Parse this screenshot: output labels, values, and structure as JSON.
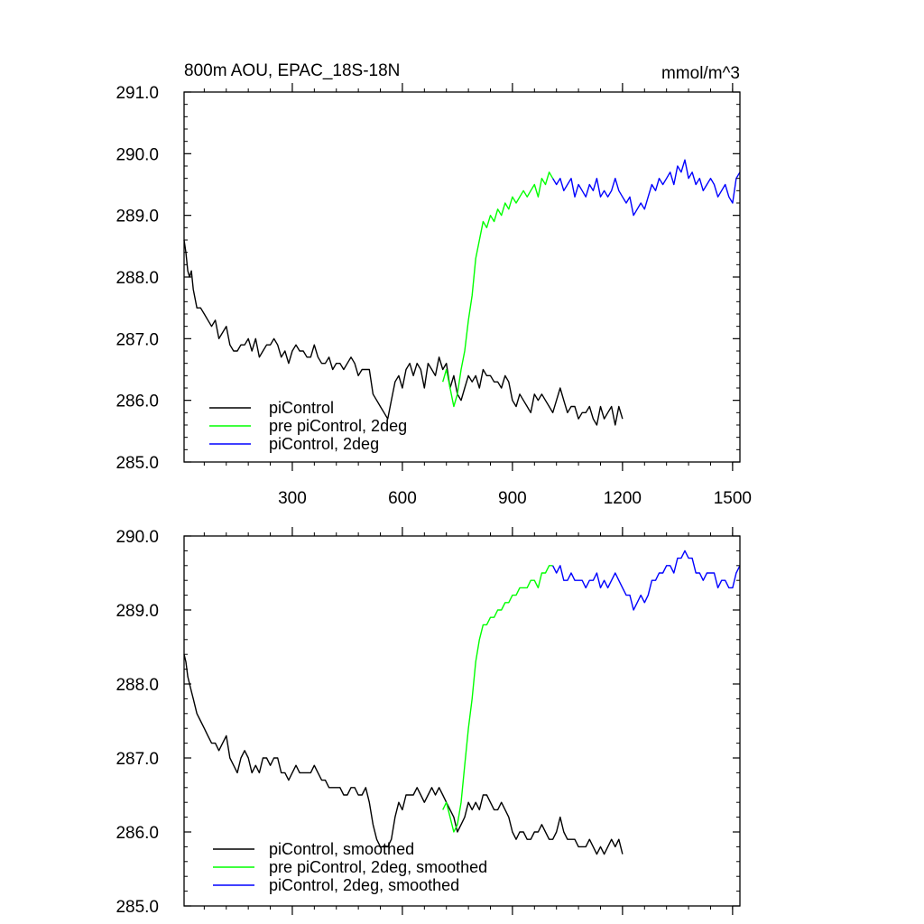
{
  "chart_data": [
    {
      "type": "line",
      "title_left": "800m AOU, EPAC_18S-18N",
      "title_right": "mmol/m^3",
      "xlim": [
        5,
        1520
      ],
      "ylim": [
        285.0,
        291.0
      ],
      "x_ticks": [
        300,
        600,
        900,
        1200,
        1500
      ],
      "y_ticks": [
        285.0,
        286.0,
        287.0,
        288.0,
        289.0,
        290.0,
        291.0
      ],
      "x_tick_labels_shown": true,
      "legend_position": "bottom-left",
      "series": [
        {
          "name": "piControl",
          "color": "#000000",
          "x": [
            5,
            10,
            15,
            20,
            25,
            30,
            40,
            50,
            60,
            70,
            80,
            90,
            100,
            110,
            120,
            130,
            140,
            150,
            160,
            170,
            180,
            190,
            200,
            210,
            220,
            230,
            240,
            250,
            260,
            270,
            280,
            290,
            300,
            310,
            320,
            330,
            340,
            350,
            360,
            370,
            380,
            390,
            400,
            410,
            420,
            430,
            440,
            450,
            460,
            470,
            480,
            490,
            500,
            510,
            520,
            530,
            540,
            550,
            560,
            570,
            580,
            590,
            600,
            610,
            620,
            630,
            640,
            650,
            660,
            670,
            680,
            690,
            700,
            710,
            720,
            730,
            740,
            750,
            760,
            770,
            780,
            790,
            800,
            810,
            820,
            830,
            840,
            850,
            860,
            870,
            880,
            890,
            900,
            910,
            920,
            930,
            940,
            950,
            960,
            970,
            980,
            990,
            1000,
            1010,
            1020,
            1030,
            1040,
            1050,
            1060,
            1070,
            1080,
            1090,
            1100,
            1110,
            1120,
            1130,
            1140,
            1150,
            1160,
            1170,
            1180,
            1190,
            1200
          ],
          "values": [
            288.6,
            288.4,
            288.1,
            288.0,
            288.1,
            287.8,
            287.5,
            287.5,
            287.4,
            287.3,
            287.2,
            287.3,
            287.0,
            287.1,
            287.2,
            286.9,
            286.8,
            286.8,
            286.9,
            286.9,
            287.0,
            286.8,
            287.0,
            286.7,
            286.8,
            286.9,
            286.9,
            287.0,
            286.9,
            286.7,
            286.8,
            286.6,
            286.8,
            286.9,
            286.8,
            286.8,
            286.7,
            286.7,
            286.9,
            286.7,
            286.6,
            286.6,
            286.7,
            286.5,
            286.6,
            286.6,
            286.5,
            286.6,
            286.7,
            286.6,
            286.4,
            286.5,
            286.5,
            286.5,
            286.1,
            286.0,
            285.9,
            285.8,
            285.7,
            286.0,
            286.3,
            286.4,
            286.2,
            286.5,
            286.6,
            286.4,
            286.6,
            286.5,
            286.2,
            286.6,
            286.5,
            286.4,
            286.7,
            286.5,
            286.6,
            286.2,
            286.4,
            286.1,
            286.0,
            286.2,
            286.4,
            286.3,
            286.4,
            286.2,
            286.5,
            286.4,
            286.4,
            286.3,
            286.3,
            286.2,
            286.4,
            286.3,
            286.0,
            285.9,
            286.1,
            286.0,
            285.9,
            285.8,
            286.1,
            286.0,
            286.1,
            286.0,
            285.9,
            285.8,
            286.0,
            286.2,
            286.0,
            285.8,
            285.9,
            285.9,
            285.7,
            285.8,
            285.8,
            285.9,
            285.7,
            285.6,
            285.9,
            285.7,
            285.8,
            285.9,
            285.6,
            285.9,
            285.7
          ]
        },
        {
          "name": "pre piControl, 2deg",
          "color": "#00ff00",
          "x": [
            710,
            720,
            730,
            740,
            750,
            760,
            770,
            780,
            790,
            800,
            810,
            820,
            830,
            840,
            850,
            860,
            870,
            880,
            890,
            900,
            910,
            920,
            930,
            940,
            950,
            960,
            970,
            980,
            990,
            1000,
            1010
          ],
          "values": [
            286.3,
            286.5,
            286.2,
            285.9,
            286.1,
            286.5,
            286.8,
            287.3,
            287.7,
            288.3,
            288.6,
            288.9,
            288.8,
            289.0,
            288.9,
            289.1,
            289.0,
            289.2,
            289.1,
            289.3,
            289.2,
            289.3,
            289.4,
            289.3,
            289.4,
            289.5,
            289.3,
            289.6,
            289.5,
            289.7,
            289.6
          ]
        },
        {
          "name": "piControl, 2deg",
          "color": "#0000ff",
          "x": [
            1010,
            1020,
            1030,
            1040,
            1050,
            1060,
            1070,
            1080,
            1090,
            1100,
            1110,
            1120,
            1130,
            1140,
            1150,
            1160,
            1170,
            1180,
            1190,
            1200,
            1210,
            1220,
            1230,
            1240,
            1250,
            1260,
            1270,
            1280,
            1290,
            1300,
            1310,
            1320,
            1330,
            1340,
            1350,
            1360,
            1370,
            1380,
            1390,
            1400,
            1410,
            1420,
            1430,
            1440,
            1450,
            1460,
            1470,
            1480,
            1490,
            1500,
            1510,
            1520
          ],
          "values": [
            289.6,
            289.5,
            289.6,
            289.4,
            289.5,
            289.6,
            289.3,
            289.5,
            289.4,
            289.3,
            289.5,
            289.4,
            289.6,
            289.3,
            289.4,
            289.3,
            289.4,
            289.6,
            289.4,
            289.3,
            289.2,
            289.3,
            289.0,
            289.1,
            289.2,
            289.1,
            289.3,
            289.5,
            289.4,
            289.6,
            289.5,
            289.6,
            289.7,
            289.5,
            289.8,
            289.7,
            289.9,
            289.6,
            289.7,
            289.5,
            289.6,
            289.4,
            289.5,
            289.6,
            289.5,
            289.3,
            289.4,
            289.5,
            289.3,
            289.2,
            289.6,
            289.7
          ]
        }
      ]
    },
    {
      "type": "line",
      "xlim": [
        5,
        1520
      ],
      "ylim": [
        285.0,
        290.0
      ],
      "x_ticks": [
        300,
        600,
        900,
        1200,
        1500
      ],
      "y_ticks": [
        285.0,
        286.0,
        287.0,
        288.0,
        289.0,
        290.0
      ],
      "x_tick_labels_shown": false,
      "legend_position": "bottom-left",
      "series": [
        {
          "name": "piControl, smoothed",
          "color": "#000000",
          "x": [
            5,
            10,
            15,
            20,
            25,
            30,
            40,
            50,
            60,
            70,
            80,
            90,
            100,
            110,
            120,
            130,
            140,
            150,
            160,
            170,
            180,
            190,
            200,
            210,
            220,
            230,
            240,
            250,
            260,
            270,
            280,
            290,
            300,
            310,
            320,
            330,
            340,
            350,
            360,
            370,
            380,
            390,
            400,
            410,
            420,
            430,
            440,
            450,
            460,
            470,
            480,
            490,
            500,
            510,
            520,
            530,
            540,
            550,
            560,
            570,
            580,
            590,
            600,
            610,
            620,
            630,
            640,
            650,
            660,
            670,
            680,
            690,
            700,
            710,
            720,
            730,
            740,
            750,
            760,
            770,
            780,
            790,
            800,
            810,
            820,
            830,
            840,
            850,
            860,
            870,
            880,
            890,
            900,
            910,
            920,
            930,
            940,
            950,
            960,
            970,
            980,
            990,
            1000,
            1010,
            1020,
            1030,
            1040,
            1050,
            1060,
            1070,
            1080,
            1090,
            1100,
            1110,
            1120,
            1130,
            1140,
            1150,
            1160,
            1170,
            1180,
            1190,
            1200
          ],
          "values": [
            288.4,
            288.3,
            288.1,
            288.0,
            287.9,
            287.8,
            287.6,
            287.5,
            287.4,
            287.3,
            287.2,
            287.2,
            287.1,
            287.2,
            287.3,
            287.0,
            286.9,
            286.8,
            287.0,
            287.1,
            287.0,
            286.8,
            286.9,
            286.8,
            287.0,
            287.0,
            286.9,
            287.0,
            287.0,
            286.8,
            286.8,
            286.7,
            286.8,
            286.9,
            286.8,
            286.8,
            286.8,
            286.8,
            286.9,
            286.8,
            286.7,
            286.7,
            286.6,
            286.6,
            286.6,
            286.6,
            286.5,
            286.5,
            286.6,
            286.6,
            286.5,
            286.5,
            286.6,
            286.4,
            286.1,
            285.9,
            285.8,
            285.8,
            285.8,
            285.9,
            286.2,
            286.4,
            286.3,
            286.5,
            286.5,
            286.5,
            286.6,
            286.5,
            286.4,
            286.5,
            286.6,
            286.5,
            286.6,
            286.5,
            286.4,
            286.3,
            286.2,
            286.0,
            286.1,
            286.2,
            286.4,
            286.3,
            286.4,
            286.3,
            286.5,
            286.5,
            286.4,
            286.3,
            286.3,
            286.4,
            286.3,
            286.2,
            286.0,
            285.9,
            286.0,
            286.0,
            285.9,
            285.9,
            286.0,
            286.0,
            286.1,
            286.0,
            285.9,
            285.9,
            286.0,
            286.2,
            286.0,
            285.9,
            285.9,
            285.9,
            285.8,
            285.8,
            285.8,
            285.9,
            285.8,
            285.7,
            285.8,
            285.7,
            285.8,
            285.9,
            285.8,
            285.9,
            285.7
          ]
        },
        {
          "name": "pre piControl, 2deg, smoothed",
          "color": "#00ff00",
          "x": [
            710,
            720,
            730,
            740,
            750,
            760,
            770,
            780,
            790,
            800,
            810,
            820,
            830,
            840,
            850,
            860,
            870,
            880,
            890,
            900,
            910,
            920,
            930,
            940,
            950,
            960,
            970,
            980,
            990,
            1000,
            1010
          ],
          "values": [
            286.3,
            286.4,
            286.2,
            286.0,
            286.1,
            286.4,
            286.9,
            287.4,
            287.8,
            288.3,
            288.6,
            288.8,
            288.8,
            288.9,
            288.9,
            289.0,
            289.0,
            289.1,
            289.1,
            289.2,
            289.2,
            289.3,
            289.3,
            289.3,
            289.4,
            289.4,
            289.3,
            289.5,
            289.5,
            289.6,
            289.6
          ]
        },
        {
          "name": "piControl, 2deg, smoothed",
          "color": "#0000ff",
          "x": [
            1010,
            1020,
            1030,
            1040,
            1050,
            1060,
            1070,
            1080,
            1090,
            1100,
            1110,
            1120,
            1130,
            1140,
            1150,
            1160,
            1170,
            1180,
            1190,
            1200,
            1210,
            1220,
            1230,
            1240,
            1250,
            1260,
            1270,
            1280,
            1290,
            1300,
            1310,
            1320,
            1330,
            1340,
            1350,
            1360,
            1370,
            1380,
            1390,
            1400,
            1410,
            1420,
            1430,
            1440,
            1450,
            1460,
            1470,
            1480,
            1490,
            1500,
            1510,
            1520
          ],
          "values": [
            289.6,
            289.5,
            289.6,
            289.4,
            289.4,
            289.5,
            289.4,
            289.4,
            289.4,
            289.3,
            289.4,
            289.4,
            289.5,
            289.3,
            289.4,
            289.3,
            289.4,
            289.5,
            289.4,
            289.3,
            289.2,
            289.2,
            289.0,
            289.1,
            289.2,
            289.1,
            289.2,
            289.4,
            289.4,
            289.5,
            289.5,
            289.6,
            289.6,
            289.5,
            289.7,
            289.7,
            289.8,
            289.7,
            289.7,
            289.5,
            289.5,
            289.4,
            289.5,
            289.5,
            289.5,
            289.3,
            289.4,
            289.4,
            289.3,
            289.3,
            289.5,
            289.6
          ]
        }
      ]
    }
  ]
}
